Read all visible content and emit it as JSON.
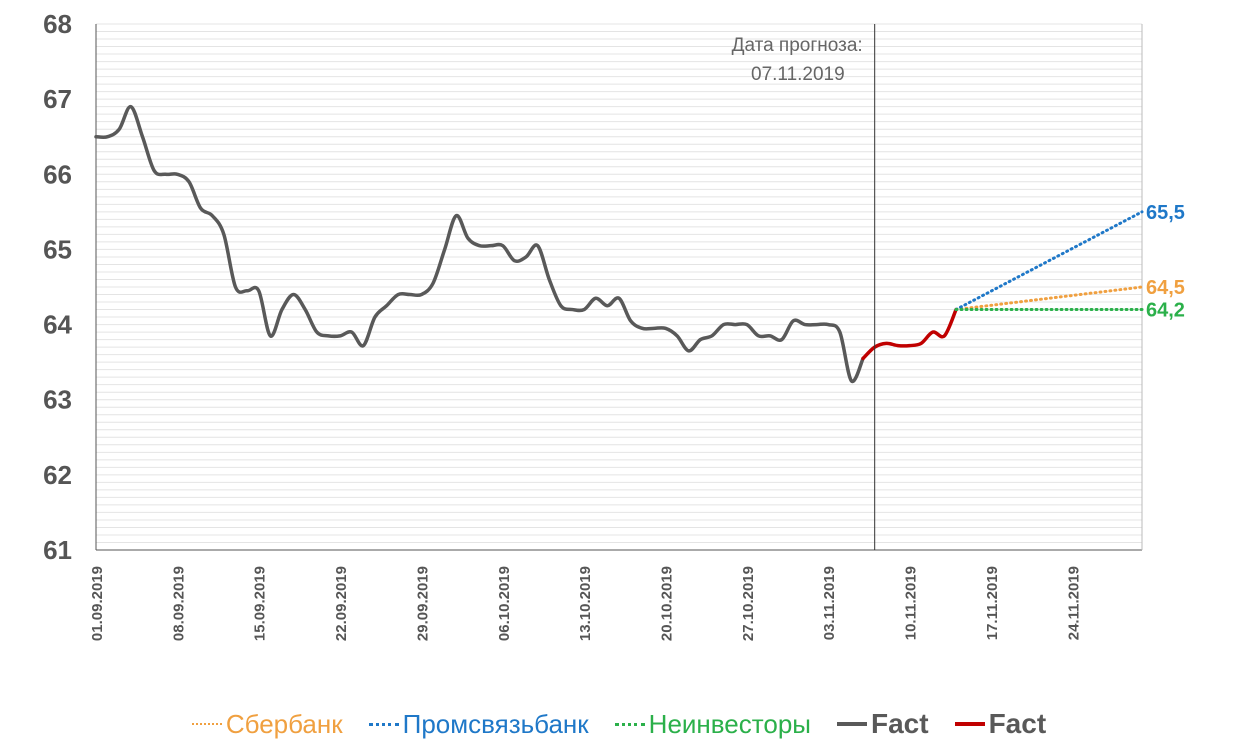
{
  "chart_data": {
    "type": "line",
    "title": "",
    "xlabel": "",
    "ylabel": "",
    "ylim": [
      61,
      68
    ],
    "yticks": [
      61,
      62,
      63,
      64,
      65,
      66,
      67,
      68
    ],
    "xlim": [
      "2019-09-01",
      "2019-11-30"
    ],
    "xticks": [
      "01.09.2019",
      "08.09.2019",
      "15.09.2019",
      "22.09.2019",
      "29.09.2019",
      "06.10.2019",
      "13.10.2019",
      "20.10.2019",
      "27.10.2019",
      "03.11.2019",
      "10.11.2019",
      "17.11.2019",
      "24.11.2019"
    ],
    "grid": true,
    "legend_position": "bottom",
    "annotation": {
      "date": "2019-11-07",
      "lines": [
        "Дата прогноза:",
        "07.11.2019"
      ]
    },
    "series": [
      {
        "name": "Fact",
        "style": "solid",
        "color": "#595959",
        "points": [
          [
            "2019-09-01",
            66.5
          ],
          [
            "2019-09-02",
            66.5
          ],
          [
            "2019-09-03",
            66.6
          ],
          [
            "2019-09-04",
            66.9
          ],
          [
            "2019-09-05",
            66.5
          ],
          [
            "2019-09-06",
            66.05
          ],
          [
            "2019-09-07",
            66.0
          ],
          [
            "2019-09-08",
            66.0
          ],
          [
            "2019-09-09",
            65.9
          ],
          [
            "2019-09-10",
            65.55
          ],
          [
            "2019-09-11",
            65.45
          ],
          [
            "2019-09-12",
            65.2
          ],
          [
            "2019-09-13",
            64.5
          ],
          [
            "2019-09-14",
            64.45
          ],
          [
            "2019-09-15",
            64.45
          ],
          [
            "2019-09-16",
            63.85
          ],
          [
            "2019-09-17",
            64.2
          ],
          [
            "2019-09-18",
            64.4
          ],
          [
            "2019-09-19",
            64.2
          ],
          [
            "2019-09-20",
            63.9
          ],
          [
            "2019-09-21",
            63.85
          ],
          [
            "2019-09-22",
            63.85
          ],
          [
            "2019-09-23",
            63.9
          ],
          [
            "2019-09-24",
            63.72
          ],
          [
            "2019-09-25",
            64.1
          ],
          [
            "2019-09-26",
            64.25
          ],
          [
            "2019-09-27",
            64.4
          ],
          [
            "2019-09-28",
            64.4
          ],
          [
            "2019-09-29",
            64.4
          ],
          [
            "2019-09-30",
            64.55
          ],
          [
            "2019-10-01",
            65.0
          ],
          [
            "2019-10-02",
            65.45
          ],
          [
            "2019-10-03",
            65.15
          ],
          [
            "2019-10-04",
            65.05
          ],
          [
            "2019-10-05",
            65.05
          ],
          [
            "2019-10-06",
            65.05
          ],
          [
            "2019-10-07",
            64.85
          ],
          [
            "2019-10-08",
            64.9
          ],
          [
            "2019-10-09",
            65.05
          ],
          [
            "2019-10-10",
            64.6
          ],
          [
            "2019-10-11",
            64.25
          ],
          [
            "2019-10-12",
            64.2
          ],
          [
            "2019-10-13",
            64.2
          ],
          [
            "2019-10-14",
            64.35
          ],
          [
            "2019-10-15",
            64.25
          ],
          [
            "2019-10-16",
            64.35
          ],
          [
            "2019-10-17",
            64.05
          ],
          [
            "2019-10-18",
            63.95
          ],
          [
            "2019-10-19",
            63.95
          ],
          [
            "2019-10-20",
            63.95
          ],
          [
            "2019-10-21",
            63.85
          ],
          [
            "2019-10-22",
            63.65
          ],
          [
            "2019-10-23",
            63.8
          ],
          [
            "2019-10-24",
            63.85
          ],
          [
            "2019-10-25",
            64.0
          ],
          [
            "2019-10-26",
            64.0
          ],
          [
            "2019-10-27",
            64.0
          ],
          [
            "2019-10-28",
            63.85
          ],
          [
            "2019-10-29",
            63.85
          ],
          [
            "2019-10-30",
            63.8
          ],
          [
            "2019-10-31",
            64.05
          ],
          [
            "2019-11-01",
            64.0
          ],
          [
            "2019-11-02",
            64.0
          ],
          [
            "2019-11-03",
            64.0
          ],
          [
            "2019-11-04",
            63.9
          ],
          [
            "2019-11-05",
            63.25
          ],
          [
            "2019-11-06",
            63.55
          ]
        ]
      },
      {
        "name": "Fact",
        "style": "solid",
        "color": "#c00000",
        "points": [
          [
            "2019-11-06",
            63.55
          ],
          [
            "2019-11-07",
            63.7
          ],
          [
            "2019-11-08",
            63.75
          ],
          [
            "2019-11-09",
            63.72
          ],
          [
            "2019-11-10",
            63.72
          ],
          [
            "2019-11-11",
            63.75
          ],
          [
            "2019-11-12",
            63.9
          ],
          [
            "2019-11-13",
            63.85
          ],
          [
            "2019-11-14",
            64.2
          ]
        ]
      },
      {
        "name": "Сбербанк",
        "style": "dotted",
        "color": "#f0a040",
        "points": [
          [
            "2019-11-14",
            64.2
          ],
          [
            "2019-11-30",
            64.5
          ]
        ],
        "end_label": "64,5"
      },
      {
        "name": "Промсвязьбанк",
        "style": "dotted",
        "color": "#1f78c8",
        "points": [
          [
            "2019-11-14",
            64.2
          ],
          [
            "2019-11-30",
            65.5
          ]
        ],
        "end_label": "65,5"
      },
      {
        "name": "Неинвесторы",
        "style": "dotted",
        "color": "#2bb04a",
        "points": [
          [
            "2019-11-14",
            64.2
          ],
          [
            "2019-11-30",
            64.2
          ]
        ],
        "end_label": "64,2"
      }
    ]
  },
  "legend": [
    {
      "label": "Сбербанк",
      "color": "#f0a040",
      "style": "dotted",
      "bold": false
    },
    {
      "label": "Промсвязьбанк",
      "color": "#1f78c8",
      "style": "dotted",
      "bold": false
    },
    {
      "label": "Неинвесторы",
      "color": "#2bb04a",
      "style": "dotted",
      "bold": false
    },
    {
      "label": "Fact",
      "color": "#595959",
      "style": "solid",
      "bold": true
    },
    {
      "label": "Fact",
      "color": "#c00000",
      "style": "solid",
      "bold": true
    }
  ]
}
